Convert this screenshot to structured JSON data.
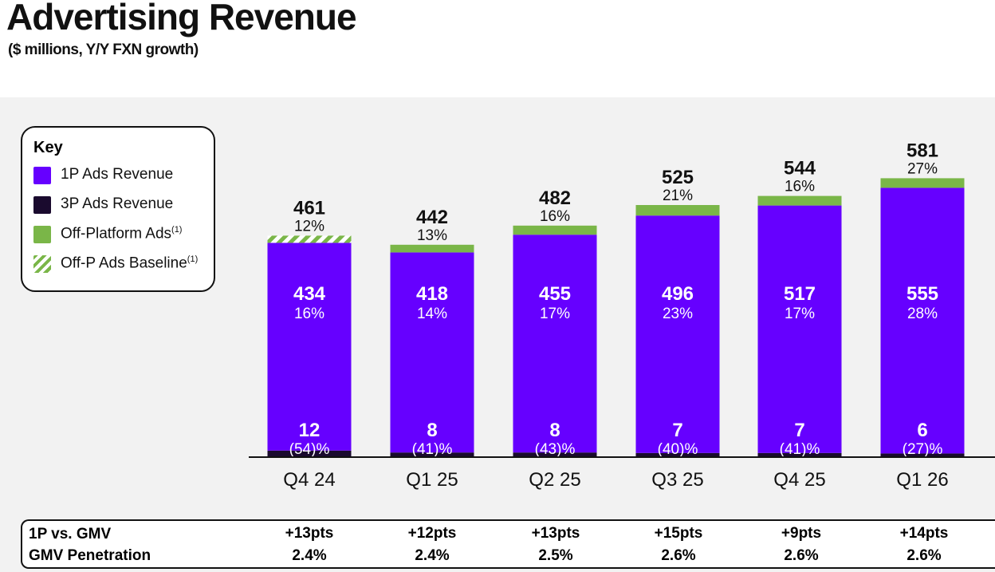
{
  "title": "Advertising Revenue",
  "subtitle": "($ millions, Y/Y FXN growth)",
  "key": {
    "title": "Key",
    "items": [
      {
        "label": "1P Ads Revenue",
        "note": "",
        "color": "#6600ff"
      },
      {
        "label": "3P Ads Revenue",
        "note": "",
        "color": "#1a0a2e"
      },
      {
        "label": "Off-Platform Ads",
        "note": "(1)",
        "color": "#7ab648"
      },
      {
        "label": "Off-P Ads Baseline",
        "note": "(1)",
        "color": "#7ab648"
      }
    ]
  },
  "chart_data": {
    "type": "bar",
    "stacked": true,
    "title": "Advertising Revenue",
    "ylabel": "$ millions",
    "ylim": [
      0,
      600
    ],
    "categories": [
      "Q4 24",
      "Q1 25",
      "Q2 25",
      "Q3 25",
      "Q4 25",
      "Q1 26"
    ],
    "series": [
      {
        "name": "3P Ads Revenue",
        "values": [
          12,
          8,
          8,
          7,
          7,
          6
        ],
        "growth": [
          "(54)%",
          "(41)%",
          "(43)%",
          "(40)%",
          "(41)%",
          "(27)%"
        ],
        "color": "#1a0a2e"
      },
      {
        "name": "1P Ads Revenue",
        "values": [
          434,
          418,
          455,
          496,
          517,
          555
        ],
        "growth": [
          "16%",
          "14%",
          "17%",
          "23%",
          "17%",
          "28%"
        ],
        "color": "#6600ff"
      },
      {
        "name": "Off-Platform Ads",
        "values": [
          15,
          16,
          19,
          22,
          20,
          20
        ],
        "baseline_flags": [
          true,
          false,
          false,
          false,
          false,
          false
        ],
        "color": "#7ab648"
      }
    ],
    "totals": [
      461,
      442,
      482,
      525,
      544,
      581
    ],
    "total_growth": [
      "12%",
      "13%",
      "16%",
      "21%",
      "16%",
      "27%"
    ]
  },
  "table": {
    "rows": [
      {
        "label": "1P vs. GMV",
        "values": [
          "+13pts",
          "+12pts",
          "+13pts",
          "+15pts",
          "+9pts",
          "+14pts"
        ]
      },
      {
        "label": "GMV Penetration",
        "values": [
          "2.4%",
          "2.4%",
          "2.5%",
          "2.6%",
          "2.6%",
          "2.6%"
        ]
      }
    ]
  }
}
